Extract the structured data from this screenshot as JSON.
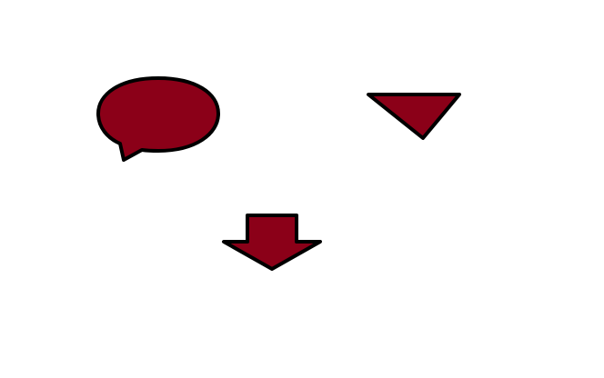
{
  "canvas": {
    "background": "#ffffff"
  },
  "style": {
    "fill": "#8b0018",
    "stroke": "#000000"
  },
  "shapes": [
    {
      "kind": "speech-bubble",
      "icon": "speech-bubble-icon"
    },
    {
      "kind": "triangle-down",
      "icon": "triangle-down-icon"
    },
    {
      "kind": "arrow-down",
      "icon": "arrow-down-icon"
    }
  ]
}
